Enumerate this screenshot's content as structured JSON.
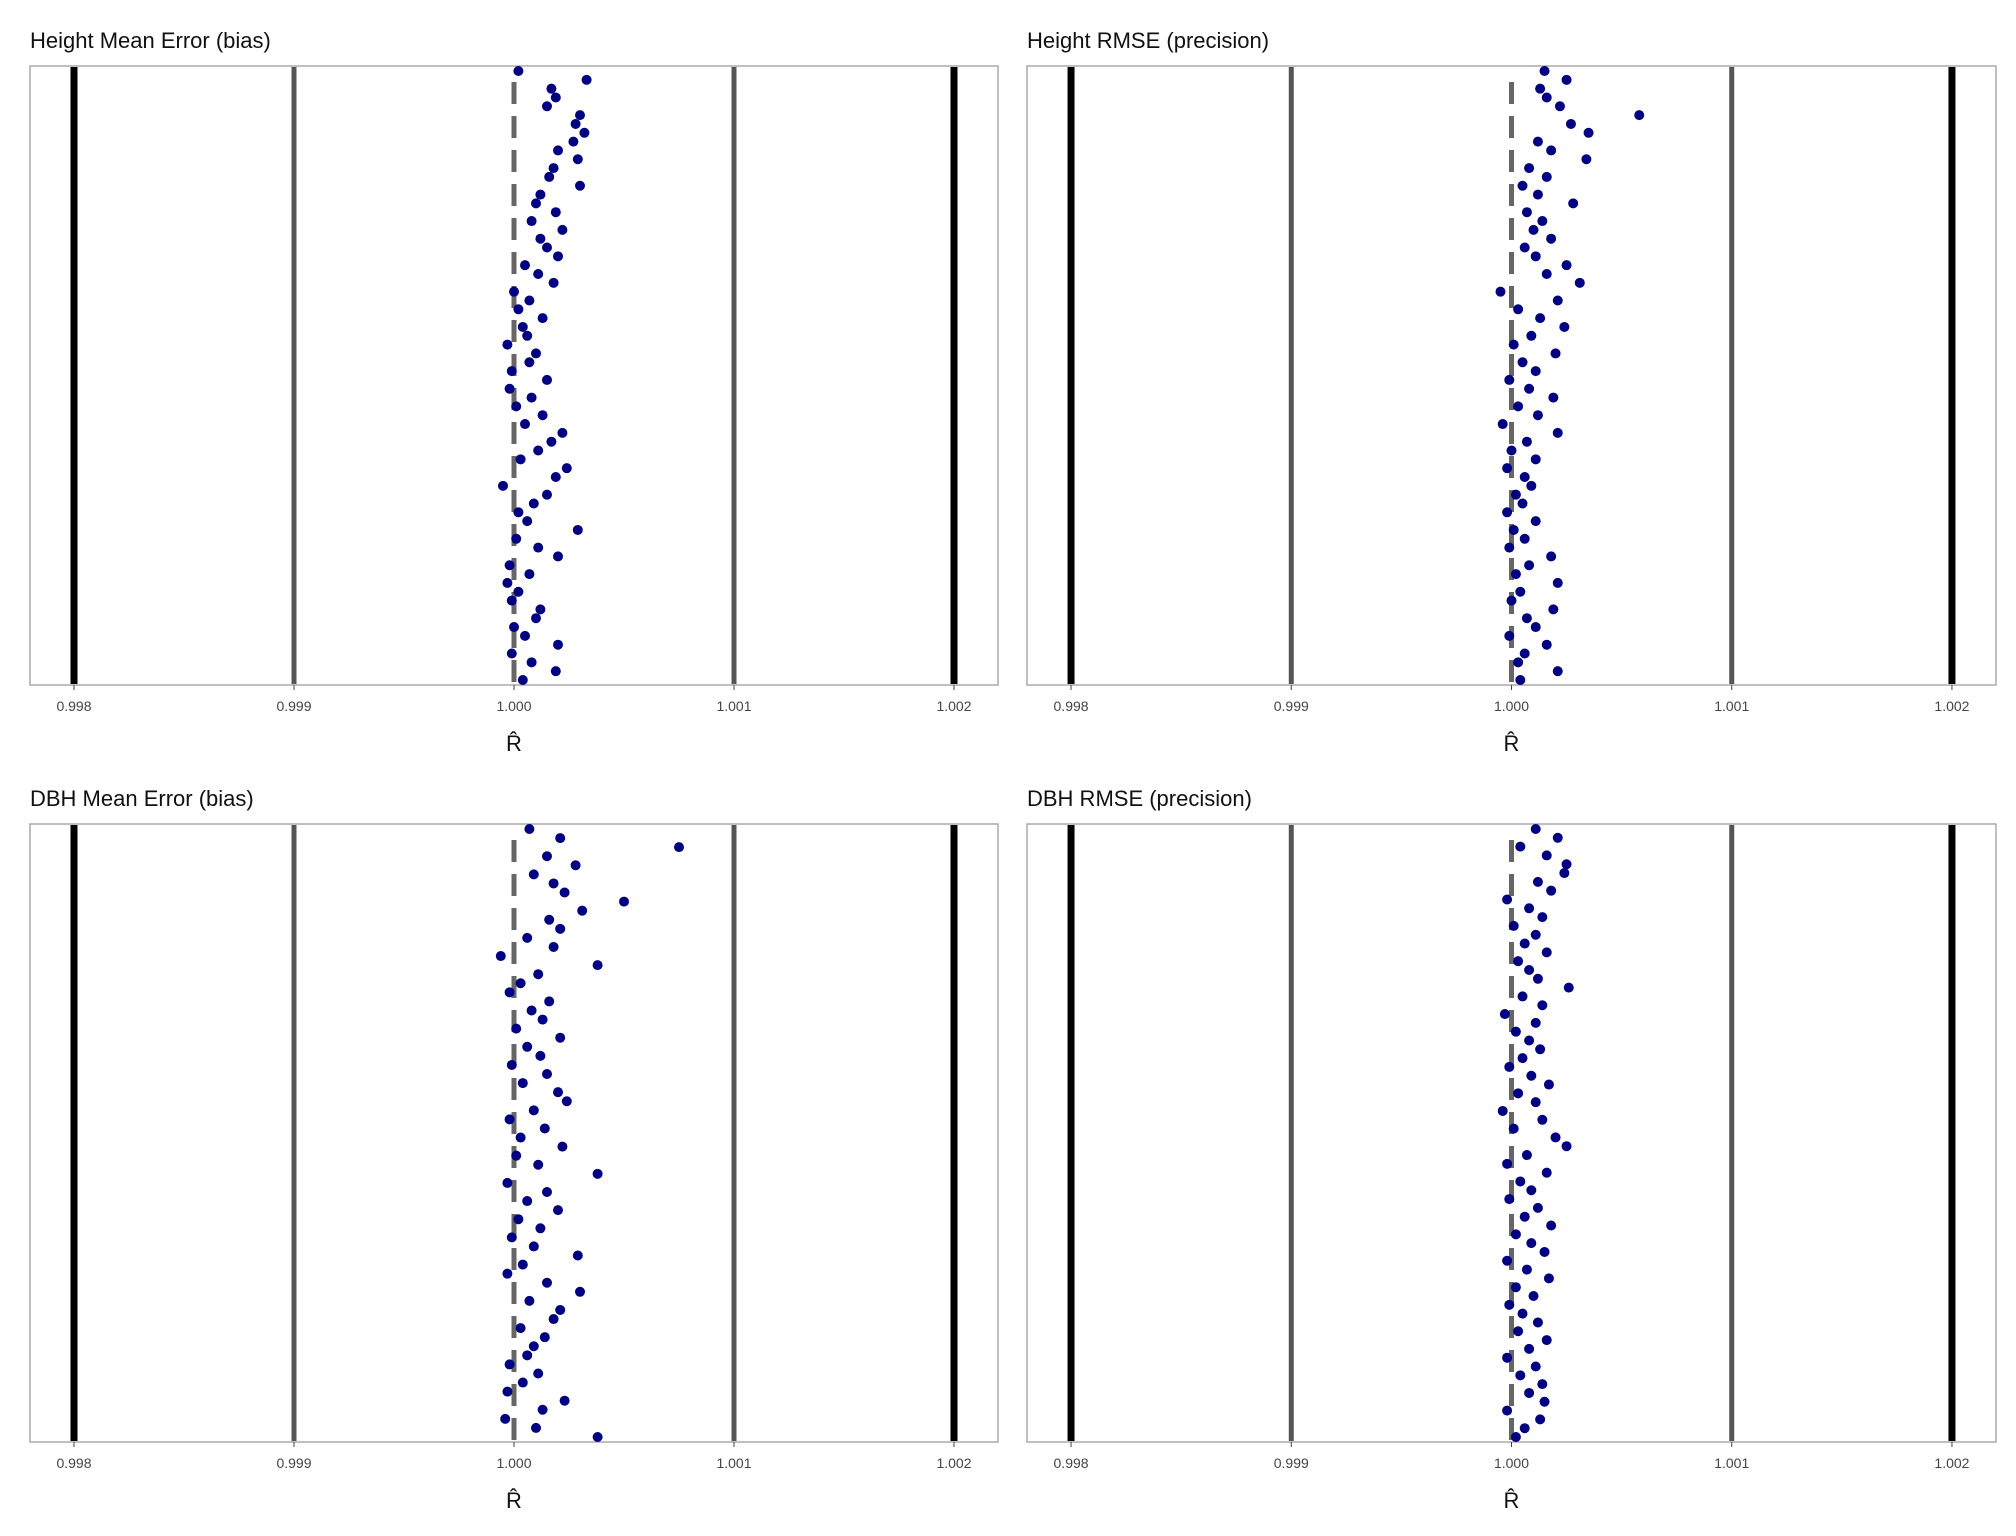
{
  "chart_data": [
    {
      "type": "strip",
      "title": "Height Mean Error (bias)",
      "x_label": "R̂",
      "color": "#000080",
      "xlim": [
        0.9978,
        1.0022
      ],
      "xticks": [
        0.998,
        0.999,
        {
          "value": 1,
          "label": "1.000"
        },
        1.001,
        1.002
      ],
      "reference_lines": [
        {
          "value": 0.998,
          "color": "#000000",
          "linewidth": 7,
          "linetype": "solid"
        },
        {
          "value": 0.999,
          "color": "#555555",
          "linewidth": 5,
          "linetype": "solid"
        },
        {
          "value": 1,
          "color": "#666666",
          "linewidth": 5,
          "linetype": "dashed"
        },
        {
          "value": 1.001,
          "color": "#555555",
          "linewidth": 5,
          "linetype": "solid"
        },
        {
          "value": 1.002,
          "color": "#000000",
          "linewidth": 7,
          "linetype": "solid"
        }
      ],
      "values": [
        1.00002,
        1.00033,
        1.00017,
        1.00019,
        1.00015,
        1.0003,
        1.00028,
        1.00032,
        1.00027,
        1.0002,
        1.00029,
        1.00018,
        1.00016,
        1.0003,
        1.00012,
        1.0001,
        1.00019,
        1.00008,
        1.00022,
        1.00012,
        1.00015,
        1.0002,
        1.00005,
        1.00011,
        1.00018,
        1,
        1.00007,
        1.00002,
        1.00013,
        1.00004,
        1.00006,
        0.99997,
        1.0001,
        1.00007,
        0.99999,
        1.00015,
        0.99998,
        1.00008,
        1.00001,
        1.00013,
        1.00005,
        1.00022,
        1.00017,
        1.00011,
        1.00003,
        1.00024,
        1.00019,
        0.99995,
        1.00015,
        1.00009,
        1.00002,
        1.00006,
        1.00029,
        1.00001,
        1.00011,
        1.0002,
        0.99998,
        1.00007,
        0.99997,
        1.00002,
        0.99999,
        1.00012,
        1.0001,
        1,
        1.00005,
        1.0002,
        0.99999,
        1.00008,
        1.00019,
        1.00004
      ]
    },
    {
      "type": "strip",
      "title": "Height RMSE (precision)",
      "x_label": "R̂",
      "color": "#000080",
      "xlim": [
        0.9978,
        1.0022
      ],
      "xticks": [
        0.998,
        0.999,
        {
          "value": 1,
          "label": "1.000"
        },
        1.001,
        1.002
      ],
      "reference_lines": [
        {
          "value": 0.998,
          "color": "#000000",
          "linewidth": 7,
          "linetype": "solid"
        },
        {
          "value": 0.999,
          "color": "#555555",
          "linewidth": 5,
          "linetype": "solid"
        },
        {
          "value": 1,
          "color": "#666666",
          "linewidth": 5,
          "linetype": "dashed"
        },
        {
          "value": 1.001,
          "color": "#555555",
          "linewidth": 5,
          "linetype": "solid"
        },
        {
          "value": 1.002,
          "color": "#000000",
          "linewidth": 7,
          "linetype": "solid"
        }
      ],
      "values": [
        1.00015,
        1.00025,
        1.00013,
        1.00016,
        1.00022,
        1.00058,
        1.00027,
        1.00035,
        1.00012,
        1.00018,
        1.00034,
        1.00008,
        1.00016,
        1.00005,
        1.00012,
        1.00028,
        1.00007,
        1.00014,
        1.0001,
        1.00018,
        1.00006,
        1.00011,
        1.00025,
        1.00016,
        1.00031,
        0.99995,
        1.00021,
        1.00003,
        1.00013,
        1.00024,
        1.00009,
        1.00001,
        1.0002,
        1.00005,
        1.00011,
        0.99999,
        1.00008,
        1.00019,
        1.00003,
        1.00012,
        0.99996,
        1.00021,
        1.00007,
        1,
        1.00011,
        0.99998,
        1.00006,
        1.00009,
        1.00002,
        1.00005,
        0.99998,
        1.00011,
        1.00001,
        1.00006,
        0.99999,
        1.00018,
        1.00008,
        1.00002,
        1.00021,
        1.00004,
        1,
        1.00019,
        1.00007,
        1.00011,
        0.99999,
        1.00016,
        1.00006,
        1.00003,
        1.00021,
        1.00004
      ]
    },
    {
      "type": "strip",
      "title": "DBH Mean Error (bias)",
      "x_label": "R̂",
      "color": "#000080",
      "xlim": [
        0.9978,
        1.0022
      ],
      "xticks": [
        0.998,
        0.999,
        {
          "value": 1,
          "label": "1.000"
        },
        1.001,
        1.002
      ],
      "reference_lines": [
        {
          "value": 0.998,
          "color": "#000000",
          "linewidth": 7,
          "linetype": "solid"
        },
        {
          "value": 0.999,
          "color": "#555555",
          "linewidth": 5,
          "linetype": "solid"
        },
        {
          "value": 1,
          "color": "#666666",
          "linewidth": 5,
          "linetype": "dashed"
        },
        {
          "value": 1.001,
          "color": "#555555",
          "linewidth": 5,
          "linetype": "solid"
        },
        {
          "value": 1.002,
          "color": "#000000",
          "linewidth": 7,
          "linetype": "solid"
        }
      ],
      "values": [
        1.00007,
        1.00021,
        1.00075,
        1.00015,
        1.00028,
        1.00009,
        1.00018,
        1.00023,
        1.0005,
        1.00031,
        1.00016,
        1.00021,
        1.00006,
        1.00018,
        0.99994,
        1.00038,
        1.00011,
        1.00003,
        0.99998,
        1.00016,
        1.00008,
        1.00013,
        1.00001,
        1.00021,
        1.00006,
        1.00012,
        0.99999,
        1.00015,
        1.00004,
        1.0002,
        1.00024,
        1.00009,
        0.99998,
        1.00014,
        1.00003,
        1.00022,
        1.00001,
        1.00011,
        1.00038,
        0.99997,
        1.00015,
        1.00006,
        1.0002,
        1.00002,
        1.00012,
        0.99999,
        1.00009,
        1.00029,
        1.00004,
        0.99997,
        1.00015,
        1.0003,
        1.00007,
        1.00021,
        1.00018,
        1.00003,
        1.00014,
        1.00009,
        1.00006,
        0.99998,
        1.00011,
        1.00004,
        0.99997,
        1.00023,
        1.00013,
        0.99996,
        1.0001,
        1.00038
      ]
    },
    {
      "type": "strip",
      "title": "DBH RMSE (precision)",
      "x_label": "R̂",
      "color": "#000080",
      "xlim": [
        0.9978,
        1.0022
      ],
      "xticks": [
        0.998,
        0.999,
        {
          "value": 1,
          "label": "1.000"
        },
        1.001,
        1.002
      ],
      "reference_lines": [
        {
          "value": 0.998,
          "color": "#000000",
          "linewidth": 7,
          "linetype": "solid"
        },
        {
          "value": 0.999,
          "color": "#555555",
          "linewidth": 5,
          "linetype": "solid"
        },
        {
          "value": 1,
          "color": "#666666",
          "linewidth": 5,
          "linetype": "dashed"
        },
        {
          "value": 1.001,
          "color": "#555555",
          "linewidth": 5,
          "linetype": "solid"
        },
        {
          "value": 1.002,
          "color": "#000000",
          "linewidth": 7,
          "linetype": "solid"
        }
      ],
      "values": [
        1.00011,
        1.00021,
        1.00004,
        1.00016,
        1.00025,
        1.00024,
        1.00012,
        1.00018,
        0.99998,
        1.00008,
        1.00014,
        1.00001,
        1.00011,
        1.00006,
        1.00016,
        1.00003,
        1.00008,
        1.00012,
        1.00026,
        1.00005,
        1.00014,
        0.99997,
        1.00011,
        1.00002,
        1.00008,
        1.00013,
        1.00005,
        0.99999,
        1.00009,
        1.00017,
        1.00003,
        1.00011,
        0.99996,
        1.00014,
        1.00001,
        1.0002,
        1.00025,
        1.00007,
        0.99998,
        1.00016,
        1.00004,
        1.00009,
        0.99999,
        1.00012,
        1.00006,
        1.00018,
        1.00002,
        1.00009,
        1.00015,
        0.99998,
        1.00007,
        1.00017,
        1.00002,
        1.0001,
        0.99999,
        1.00005,
        1.00012,
        1.00003,
        1.00016,
        1.00008,
        0.99998,
        1.00011,
        1.00004,
        1.00014,
        1.00008,
        1.00015,
        0.99998,
        1.00013,
        1.00006,
        1.00002
      ]
    }
  ]
}
